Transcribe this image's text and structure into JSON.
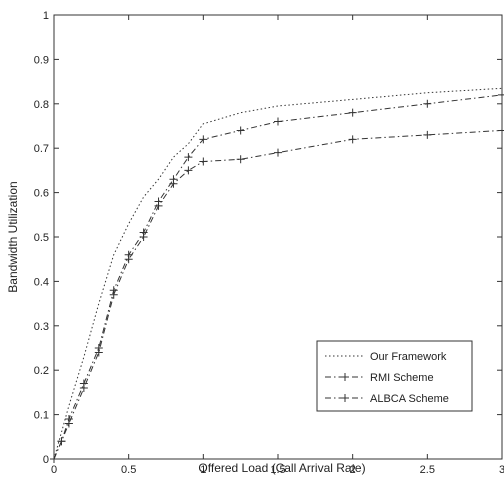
{
  "chart_data": {
    "type": "line",
    "title": "",
    "xlabel": "Offered Load (Call Arrival Rate)",
    "ylabel": "Bandwidth Utilization",
    "xlim": [
      0,
      3
    ],
    "ylim": [
      0,
      1
    ],
    "xticks": [
      "0",
      "0.5",
      "1",
      "1.5",
      "2",
      "2.5",
      "3"
    ],
    "yticks": [
      "0",
      "0.1",
      "0.2",
      "0.3",
      "0.4",
      "0.5",
      "0.6",
      "0.7",
      "0.8",
      "0.9",
      "1"
    ],
    "grid": false,
    "legend_position": "bottom-right",
    "series": [
      {
        "name": "Our Framework",
        "style": "dotted",
        "marker": "none",
        "color": "#333333",
        "x": [
          0,
          0.1,
          0.2,
          0.3,
          0.4,
          0.5,
          0.6,
          0.7,
          0.8,
          0.9,
          1.0,
          1.25,
          1.5,
          2.0,
          2.5,
          3.0
        ],
        "y": [
          0,
          0.12,
          0.23,
          0.35,
          0.46,
          0.53,
          0.59,
          0.63,
          0.68,
          0.71,
          0.755,
          0.78,
          0.795,
          0.81,
          0.825,
          0.835
        ]
      },
      {
        "name": "RMI Scheme",
        "style": "dashdot",
        "marker": "plus",
        "color": "#333333",
        "x": [
          0,
          0.05,
          0.1,
          0.2,
          0.3,
          0.4,
          0.5,
          0.6,
          0.7,
          0.8,
          0.9,
          1.0,
          1.25,
          1.5,
          2.0,
          2.5,
          3.0
        ],
        "y": [
          0,
          0.04,
          0.09,
          0.17,
          0.25,
          0.38,
          0.46,
          0.51,
          0.58,
          0.63,
          0.68,
          0.72,
          0.74,
          0.76,
          0.78,
          0.8,
          0.82
        ]
      },
      {
        "name": "ALBCA Scheme",
        "style": "dashdot",
        "marker": "plus",
        "color": "#333333",
        "x": [
          0,
          0.05,
          0.1,
          0.2,
          0.3,
          0.4,
          0.5,
          0.6,
          0.7,
          0.8,
          0.9,
          1.0,
          1.25,
          1.5,
          2.0,
          2.5,
          3.0
        ],
        "y": [
          0,
          0.04,
          0.08,
          0.16,
          0.24,
          0.37,
          0.45,
          0.5,
          0.57,
          0.62,
          0.65,
          0.67,
          0.675,
          0.69,
          0.72,
          0.73,
          0.74
        ]
      }
    ]
  }
}
